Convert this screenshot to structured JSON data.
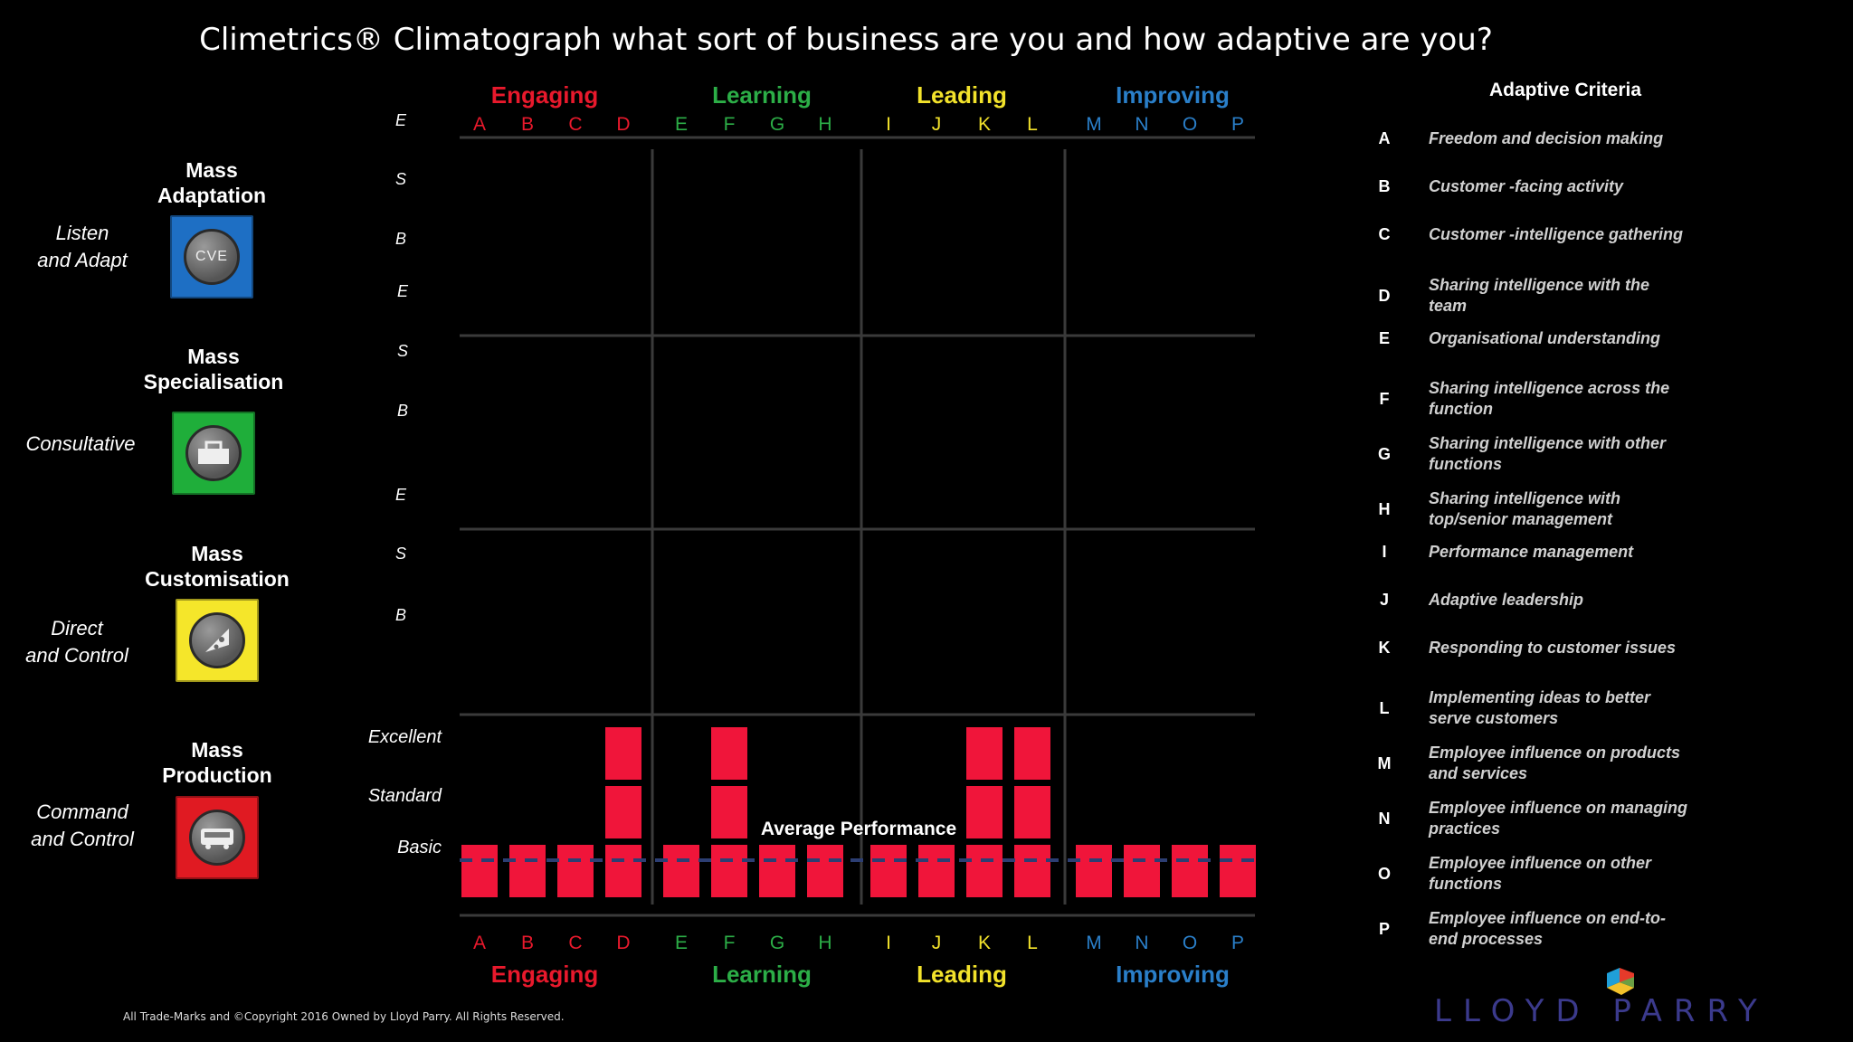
{
  "title": "Climetrics® Climatograph what sort of business are you and how adaptive are you?",
  "colors": {
    "engaging": "#e8192c",
    "learning": "#2cae47",
    "leading": "#f2e22b",
    "improving": "#2a7fc9",
    "bar": "#f0153a",
    "avg_line": "#2c3e73"
  },
  "groups": [
    {
      "name": "Engaging",
      "color": "#e8192c",
      "letters": [
        "A",
        "B",
        "C",
        "D"
      ]
    },
    {
      "name": "Learning",
      "color": "#2cae47",
      "letters": [
        "E",
        "F",
        "G",
        "H"
      ]
    },
    {
      "name": "Leading",
      "color": "#f2e22b",
      "letters": [
        "I",
        "J",
        "K",
        "L"
      ]
    },
    {
      "name": "Improving",
      "color": "#2a7fc9",
      "letters": [
        "M",
        "N",
        "O",
        "P"
      ]
    }
  ],
  "tiers": [
    {
      "name_line1": "Mass",
      "name_line2": "Adaptation",
      "desc_line1": "Listen",
      "desc_line2": "and Adapt",
      "color": "#1e6fc4",
      "icon": "cve-icon",
      "icon_text": "CVE",
      "levels": [
        "E",
        "S",
        "B"
      ]
    },
    {
      "name_line1": "Mass",
      "name_line2": "Specialisation",
      "desc_line1": "Consultative",
      "desc_line2": "",
      "color": "#1fae3a",
      "icon": "shopping-bags-icon",
      "icon_text": "",
      "levels": [
        "E",
        "S",
        "B"
      ]
    },
    {
      "name_line1": "Mass",
      "name_line2": "Customisation",
      "desc_line1": "Direct",
      "desc_line2": "and Control",
      "color": "#f5e62a",
      "icon": "pizza-slice-icon",
      "icon_text": "",
      "levels": [
        "E",
        "S",
        "B"
      ]
    },
    {
      "name_line1": "Mass",
      "name_line2": "Production",
      "desc_line1": "Command",
      "desc_line2": "and Control",
      "color": "#e01a22",
      "icon": "bus-icon",
      "icon_text": "",
      "levels": [
        "Excellent",
        "Standard",
        "Basic"
      ]
    }
  ],
  "chart_data": {
    "type": "bar",
    "categories": [
      "A",
      "B",
      "C",
      "D",
      "E",
      "F",
      "G",
      "H",
      "I",
      "J",
      "K",
      "L",
      "M",
      "N",
      "O",
      "P"
    ],
    "levels": [
      "Basic",
      "Standard",
      "Excellent"
    ],
    "values": [
      1,
      1,
      1,
      3,
      1,
      3,
      1,
      1,
      1,
      1,
      3,
      3,
      1,
      1,
      1,
      1
    ],
    "average_label": "Average Performance",
    "average_value": 1.25
  },
  "criteria": {
    "title": "Adaptive Criteria",
    "items": [
      {
        "letter": "A",
        "text_line1": "Freedom and decision making",
        "text_line2": ""
      },
      {
        "letter": "B",
        "text_line1": "Customer -facing activity",
        "text_line2": ""
      },
      {
        "letter": "C",
        "text_line1": "Customer -intelligence gathering",
        "text_line2": ""
      },
      {
        "letter": "D",
        "text_line1": "Sharing intelligence with the",
        "text_line2": "team"
      },
      {
        "letter": "E",
        "text_line1": "Organisational understanding",
        "text_line2": ""
      },
      {
        "letter": "F",
        "text_line1": "Sharing intelligence across the",
        "text_line2": "function"
      },
      {
        "letter": "G",
        "text_line1": "Sharing intelligence with other",
        "text_line2": "functions"
      },
      {
        "letter": "H",
        "text_line1": "Sharing intelligence with",
        "text_line2": "top/senior management"
      },
      {
        "letter": "I",
        "text_line1": "Performance management",
        "text_line2": ""
      },
      {
        "letter": "J",
        "text_line1": "Adaptive leadership",
        "text_line2": ""
      },
      {
        "letter": "K",
        "text_line1": "Responding to customer issues",
        "text_line2": ""
      },
      {
        "letter": "L",
        "text_line1": "Implementing ideas to better",
        "text_line2": "serve customers"
      },
      {
        "letter": "M",
        "text_line1": "Employee influence on products",
        "text_line2": "and services"
      },
      {
        "letter": "N",
        "text_line1": "Employee influence on managing",
        "text_line2": "practices"
      },
      {
        "letter": "O",
        "text_line1": "Employee influence on other",
        "text_line2": "functions"
      },
      {
        "letter": "P",
        "text_line1": "Employee influence on end-to-",
        "text_line2": "end processes"
      }
    ]
  },
  "footer": {
    "copyright": "All Trade-Marks and ©Copyright 2016 Owned by Lloyd Parry. All Rights Reserved.",
    "logo": "LLOYD PARRY"
  }
}
